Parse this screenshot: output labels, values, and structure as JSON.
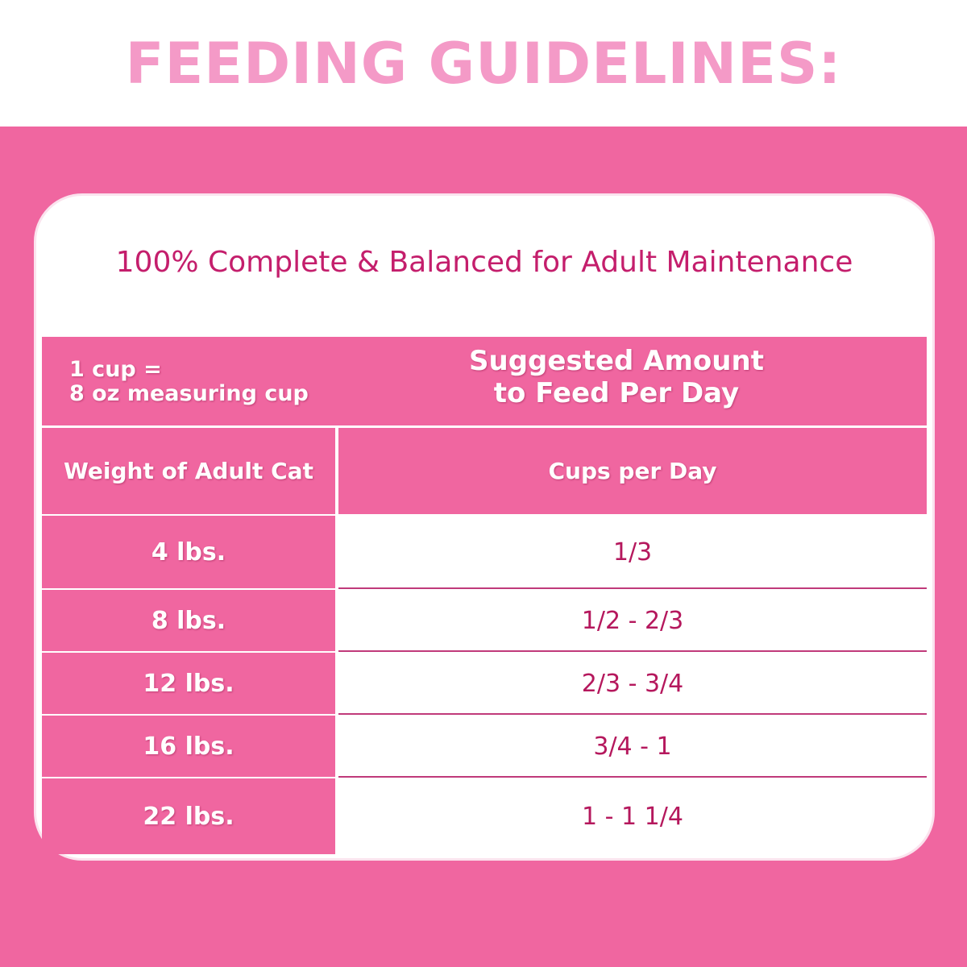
{
  "title": "FEEDING GUIDELINES:",
  "subtitle": "100% Complete & Balanced for Adult Maintenance",
  "table": {
    "note_line1": "1 cup =",
    "note_line2": "8 oz measuring cup",
    "suggested_line1": "Suggested Amount",
    "suggested_line2": "to Feed Per Day",
    "col1_header": "Weight of Adult Cat",
    "col2_header": "Cups per Day",
    "rows": [
      {
        "weight": "4 lbs.",
        "cups": "1/3"
      },
      {
        "weight": "8 lbs.",
        "cups": "1/2 - 2/3"
      },
      {
        "weight": "12 lbs.",
        "cups": "2/3 - 3/4"
      },
      {
        "weight": "16 lbs.",
        "cups": "3/4 - 1"
      },
      {
        "weight": "22 lbs.",
        "cups": "1 - 1 1/4"
      }
    ]
  },
  "colors": {
    "accent": "#f066a0",
    "title": "#f49ac7",
    "text": "#c41e6c"
  }
}
